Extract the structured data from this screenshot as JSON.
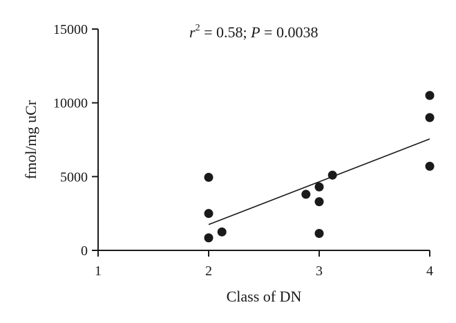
{
  "chart_data": {
    "type": "scatter",
    "xlabel": "Class of DN",
    "ylabel": "fmol/mg uCr",
    "xlim": [
      1,
      4
    ],
    "ylim": [
      0,
      15000
    ],
    "xticks": [
      1,
      2,
      3,
      4
    ],
    "yticks": [
      0,
      5000,
      10000,
      15000
    ],
    "annotation": {
      "r_symbol": "r",
      "r_exponent": "2",
      "r_value": " = 0.58; ",
      "p_symbol": "P",
      "p_value": " = 0.0038"
    },
    "grid": false,
    "points": [
      {
        "x": 2.0,
        "y": 4950
      },
      {
        "x": 2.0,
        "y": 2500
      },
      {
        "x": 2.0,
        "y": 850
      },
      {
        "x": 2.12,
        "y": 1250
      },
      {
        "x": 2.88,
        "y": 3800
      },
      {
        "x": 3.0,
        "y": 4300
      },
      {
        "x": 3.0,
        "y": 3300
      },
      {
        "x": 3.0,
        "y": 1150
      },
      {
        "x": 3.12,
        "y": 5100
      },
      {
        "x": 4.0,
        "y": 10500
      },
      {
        "x": 4.0,
        "y": 9000
      },
      {
        "x": 4.0,
        "y": 5700
      }
    ],
    "fit_line": {
      "x": [
        2,
        4
      ],
      "y": [
        1750,
        7550
      ]
    }
  }
}
